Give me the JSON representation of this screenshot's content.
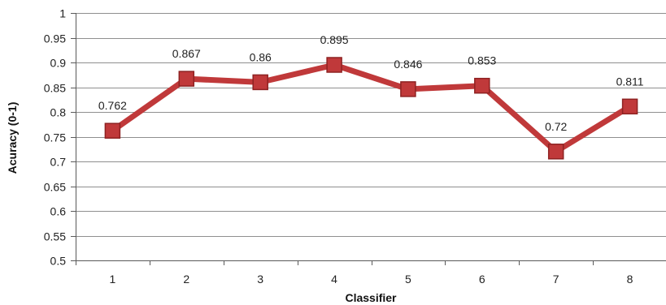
{
  "chart_data": {
    "type": "line",
    "title": "",
    "xlabel": "Classifier",
    "ylabel": "Acuracy (0-1)",
    "categories": [
      "1",
      "2",
      "3",
      "4",
      "5",
      "6",
      "7",
      "8"
    ],
    "yticks": [
      "0.5",
      "0.55",
      "0.6",
      "0.65",
      "0.7",
      "0.75",
      "0.8",
      "0.85",
      "0.9",
      "0.95",
      "1"
    ],
    "ylim": [
      0.5,
      1.0
    ],
    "grid": true,
    "legend": "none",
    "series": [
      {
        "values": [
          0.762,
          0.867,
          0.86,
          0.895,
          0.846,
          0.853,
          0.72,
          0.811
        ],
        "labels": [
          "0.762",
          "0.867",
          "0.86",
          "0.895",
          "0.846",
          "0.853",
          "0.72",
          "0.811"
        ],
        "color": "#c0393a",
        "marker": "square"
      }
    ]
  },
  "colors": {
    "line": "#c0393a",
    "marker_fill": "#c0393a",
    "marker_stroke": "#8e2222",
    "grid": "#8f8f8f",
    "axis": "#5a5a5a"
  }
}
